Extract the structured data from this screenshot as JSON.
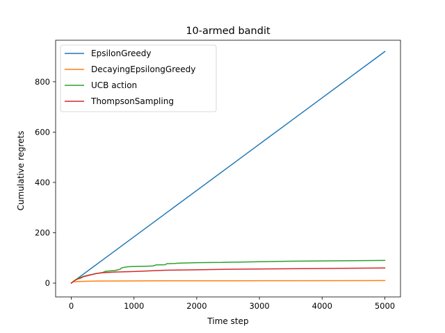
{
  "chart_data": {
    "type": "line",
    "title": "10-armed bandit",
    "xlabel": "Time step",
    "ylabel": "Cumulative regrets",
    "xlim": [
      -250,
      5250
    ],
    "ylim": [
      -55,
      965
    ],
    "xticks": [
      0,
      1000,
      2000,
      3000,
      4000,
      5000
    ],
    "yticks": [
      0,
      200,
      400,
      600,
      800
    ],
    "grid": false,
    "legend_position": "top-left",
    "series": [
      {
        "name": "EpsilonGreedy",
        "color": "#1f77b4",
        "x": [
          0,
          500,
          1000,
          1500,
          2000,
          2500,
          3000,
          3500,
          4000,
          4500,
          5000
        ],
        "y": [
          0,
          92,
          184,
          276,
          368,
          460,
          552,
          644,
          736,
          828,
          920
        ]
      },
      {
        "name": "DecayingEpsilongGreedy",
        "color": "#ff7f0e",
        "x": [
          0,
          30,
          100,
          200,
          400,
          800,
          1500,
          2500,
          3500,
          4500,
          5000
        ],
        "y": [
          0,
          5,
          6,
          7,
          8,
          8.5,
          9,
          9.2,
          9.5,
          9.8,
          10
        ]
      },
      {
        "name": "UCB action",
        "color": "#2ca02c",
        "x": [
          0,
          50,
          100,
          150,
          200,
          300,
          400,
          500,
          550,
          700,
          780,
          800,
          850,
          900,
          1000,
          1200,
          1300,
          1350,
          1500,
          1520,
          1650,
          1700,
          2000,
          2400,
          2500,
          2800,
          3000,
          3500,
          4000,
          4500,
          5000
        ],
        "y": [
          0,
          10,
          18,
          22,
          27,
          33,
          38,
          42,
          47,
          50,
          55,
          60,
          63,
          65,
          66,
          67,
          68,
          72,
          73,
          77,
          78,
          79,
          81,
          82,
          83,
          84,
          85,
          87,
          88,
          89,
          90
        ]
      },
      {
        "name": "ThompsonSampling",
        "color": "#d62728",
        "x": [
          0,
          50,
          100,
          150,
          200,
          300,
          400,
          500,
          700,
          1000,
          1300,
          1500,
          1700,
          2000,
          2500,
          3000,
          3500,
          4000,
          4500,
          5000
        ],
        "y": [
          0,
          10,
          16,
          20,
          26,
          32,
          38,
          41,
          44,
          46,
          49,
          51,
          52,
          53,
          55,
          56,
          57,
          58,
          59,
          60
        ]
      }
    ]
  }
}
